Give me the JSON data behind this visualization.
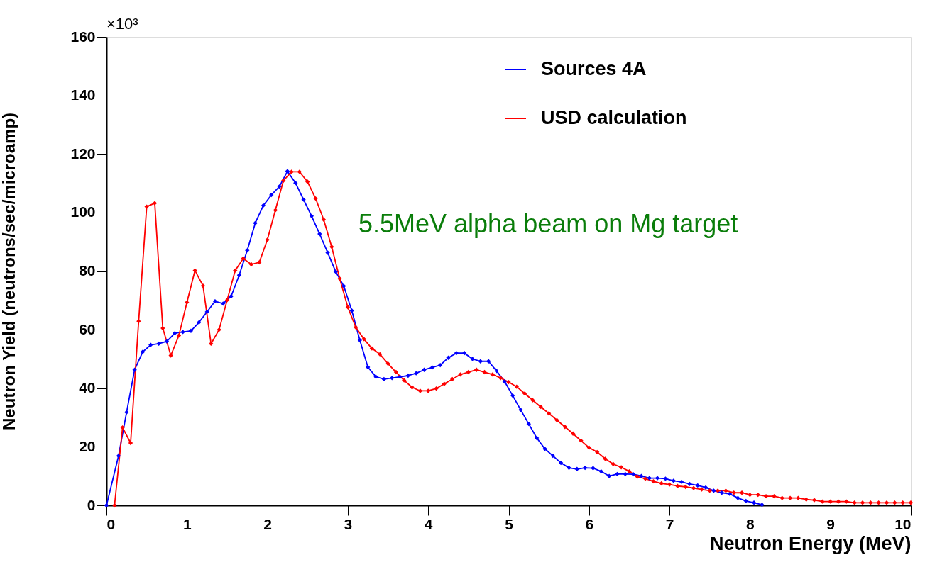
{
  "chart_data": {
    "type": "line",
    "xlabel": "Neutron Energy (MeV)",
    "ylabel": "Neutron Yield (neutrons/sec/microamp)",
    "annotations": [
      "×10³",
      "5.5MeV alpha beam on Mg target"
    ],
    "xlim": [
      0,
      10
    ],
    "xticks": [
      0,
      1,
      2,
      3,
      4,
      5,
      6,
      7,
      8,
      9,
      10
    ],
    "ylim": [
      0,
      160
    ],
    "yticks": [
      0,
      20,
      40,
      60,
      80,
      100,
      120,
      140,
      160
    ],
    "grid": false,
    "legend": "top right",
    "marker": "diamond",
    "line_style": "solid",
    "series": [
      {
        "name": "Sources 4A",
        "color": "#0000ff",
        "x": [
          0,
          0.15,
          0.25,
          0.35,
          0.45,
          0.55,
          0.65,
          0.75,
          0.85,
          0.95,
          1.05,
          1.15,
          1.25,
          1.35,
          1.45,
          1.55,
          1.65,
          1.75,
          1.85,
          1.95,
          2.05,
          2.15,
          2.25,
          2.35,
          2.45,
          2.55,
          2.65,
          2.75,
          2.85,
          2.95,
          3.05,
          3.15,
          3.25,
          3.35,
          3.45,
          3.55,
          3.65,
          3.75,
          3.85,
          3.95,
          4.05,
          4.15,
          4.25,
          4.35,
          4.45,
          4.55,
          4.65,
          4.75,
          4.85,
          4.95,
          5.05,
          5.15,
          5.25,
          5.35,
          5.45,
          5.55,
          5.65,
          5.75,
          5.85,
          5.95,
          6.05,
          6.15,
          6.25,
          6.35,
          6.45,
          6.55,
          6.65,
          6.75,
          6.85,
          6.95,
          7.05,
          7.15,
          7.25,
          7.35,
          7.45,
          7.55,
          7.65,
          7.75,
          7.85,
          7.95,
          8.05,
          8.15
        ],
        "values": [
          0,
          16.9,
          31.8,
          46.3,
          52.4,
          54.8,
          55.2,
          56,
          58.8,
          59.2,
          59.6,
          62.5,
          66.1,
          69.7,
          68.9,
          71.4,
          78.6,
          87.1,
          96.4,
          102.4,
          106,
          108.9,
          114.1,
          110.1,
          104.4,
          98.8,
          92.7,
          86.3,
          79.8,
          74.9,
          66.5,
          56.4,
          47.2,
          43.9,
          43.1,
          43.5,
          43.9,
          44.3,
          45.1,
          46.3,
          47.1,
          47.9,
          50.4,
          52,
          52,
          50,
          49.2,
          49.2,
          45.9,
          42.3,
          37.5,
          32.6,
          27.8,
          23,
          19.3,
          16.9,
          14.5,
          12.8,
          12.4,
          12.8,
          12.7,
          11.6,
          10.0,
          10.7,
          10.7,
          10.6,
          10.0,
          9.3,
          9.3,
          9.1,
          8.4,
          8.0,
          7.3,
          6.8,
          6.1,
          5.0,
          4.3,
          3.9,
          2.5,
          1.5,
          0.9,
          0.2
        ]
      },
      {
        "name": "USD calculation",
        "color": "#ff0000",
        "x": [
          0.1,
          0.2,
          0.3,
          0.4,
          0.5,
          0.6,
          0.7,
          0.8,
          0.9,
          1.0,
          1.1,
          1.2,
          1.3,
          1.4,
          1.5,
          1.6,
          1.7,
          1.8,
          1.9,
          2.0,
          2.1,
          2.2,
          2.3,
          2.4,
          2.5,
          2.6,
          2.7,
          2.8,
          2.9,
          3.0,
          3.1,
          3.2,
          3.3,
          3.4,
          3.5,
          3.6,
          3.7,
          3.8,
          3.9,
          4.0,
          4.1,
          4.2,
          4.3,
          4.4,
          4.5,
          4.6,
          4.7,
          4.8,
          4.9,
          5.0,
          5.1,
          5.2,
          5.3,
          5.4,
          5.5,
          5.6,
          5.7,
          5.8,
          5.9,
          6.0,
          6.1,
          6.2,
          6.3,
          6.4,
          6.5,
          6.6,
          6.7,
          6.8,
          6.9,
          7.0,
          7.1,
          7.2,
          7.3,
          7.4,
          7.5,
          7.6,
          7.7,
          7.8,
          7.9,
          8.0,
          8.1,
          8.2,
          8.3,
          8.4,
          8.5,
          8.6,
          8.7,
          8.8,
          8.9,
          9.0,
          9.1,
          9.2,
          9.3,
          9.4,
          9.5,
          9.6,
          9.7,
          9.8,
          9.9,
          10.0
        ],
        "values": [
          0,
          26.6,
          21.3,
          62.9,
          102,
          103.2,
          60.5,
          51.2,
          58,
          69.3,
          80.2,
          75,
          55.2,
          60,
          70.1,
          80.2,
          84.3,
          82.3,
          83,
          90.7,
          100.8,
          110.9,
          113.9,
          113.9,
          110.5,
          104.8,
          97.6,
          88.3,
          77.4,
          67.7,
          60.8,
          56.8,
          53.6,
          51.6,
          48.4,
          45.5,
          42.7,
          40.3,
          39.1,
          39.1,
          39.9,
          41.5,
          43.1,
          44.7,
          45.5,
          46.3,
          45.5,
          44.7,
          43.5,
          42.1,
          40.5,
          38.2,
          35.9,
          33.6,
          31.4,
          29.1,
          26.8,
          24.5,
          22.1,
          19.7,
          18.2,
          15.9,
          14.1,
          13.0,
          11.6,
          9.8,
          9.1,
          8.2,
          7.5,
          7.1,
          6.6,
          6.3,
          5.9,
          5.4,
          5.0,
          5.0,
          5.0,
          4.3,
          4.3,
          3.6,
          3.6,
          3.1,
          3.1,
          2.5,
          2.5,
          2.5,
          2.0,
          1.8,
          1.3,
          1.3,
          1.3,
          1.3,
          0.9,
          0.9,
          0.9,
          0.9,
          0.9,
          0.9,
          0.9,
          0.9
        ]
      }
    ]
  }
}
